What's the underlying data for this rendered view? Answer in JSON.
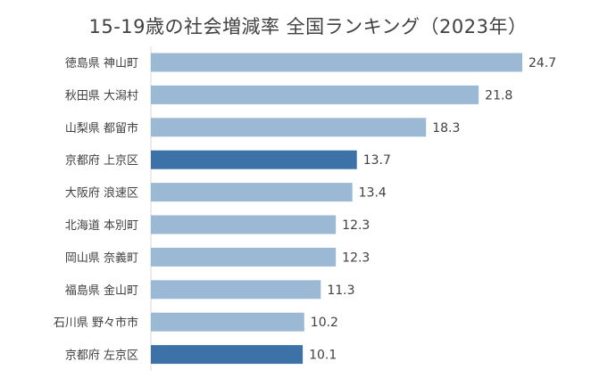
{
  "chart_data": {
    "type": "bar",
    "orientation": "horizontal",
    "title": "15-19歳の社会増減率 全国ランキング（2023年）",
    "categories": [
      "徳島県 神山町",
      "秋田県 大潟村",
      "山梨県 都留市",
      "京都府 上京区",
      "大阪府 浪速区",
      "北海道 本別町",
      "岡山県 奈義町",
      "福島県 金山町",
      "石川県 野々市市",
      "京都府 左京区"
    ],
    "values": [
      24.7,
      21.8,
      18.3,
      13.7,
      13.4,
      12.3,
      12.3,
      11.3,
      10.2,
      10.1
    ],
    "value_labels": [
      "24.7",
      "21.8",
      "18.3",
      "13.7",
      "13.4",
      "12.3",
      "12.3",
      "11.3",
      "10.2",
      "10.1"
    ],
    "highlighted": [
      false,
      false,
      false,
      true,
      false,
      false,
      false,
      false,
      false,
      true
    ],
    "xlabel": "",
    "ylabel": "",
    "xlim": [
      0,
      25
    ],
    "grid": false,
    "legend": "none",
    "colors": {
      "bar": "#9BB8D5",
      "bar_highlight": "#3C72A8",
      "text": "#404040"
    }
  }
}
